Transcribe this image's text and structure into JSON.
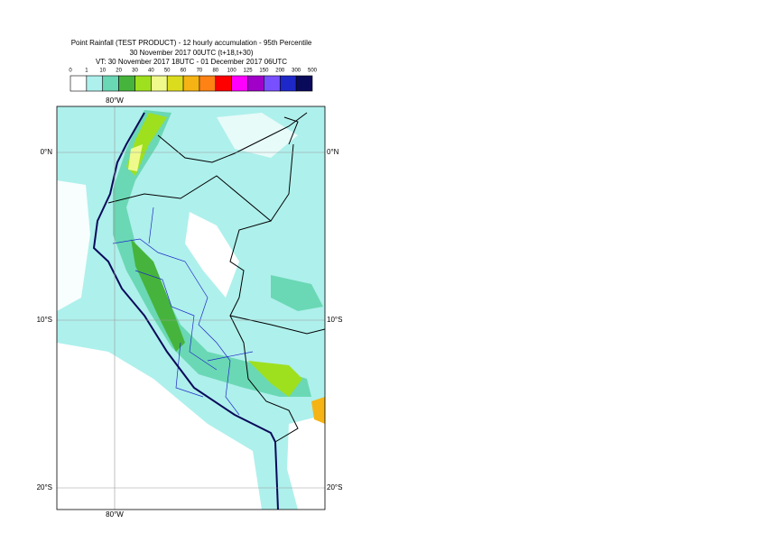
{
  "header": {
    "title": "Point Rainfall (TEST PRODUCT) - 12 hourly accumulation - 95th Percentile",
    "run": "30 November 2017 00UTC (t+18,t+30)",
    "validity": "VT: 30 November 2017 18UTC - 01 December 2017 06UTC"
  },
  "legend": {
    "labels": [
      0,
      1,
      10,
      20,
      30,
      40,
      50,
      60,
      70,
      80,
      100,
      125,
      150,
      200,
      300,
      500
    ],
    "colors": [
      "#ffffff",
      "#aef0ec",
      "#6ad8b4",
      "#46b43c",
      "#9ee01e",
      "#f0fa8c",
      "#dcdc1e",
      "#f5b414",
      "#ff8214",
      "#ff0000",
      "#ff00ff",
      "#a000c8",
      "#7850ff",
      "#1e28c8",
      "#0a0a5a"
    ]
  },
  "map": {
    "lon_labels": [
      "80°W"
    ],
    "lat_labels": [
      "0°N",
      "10°S",
      "20°S"
    ]
  }
}
